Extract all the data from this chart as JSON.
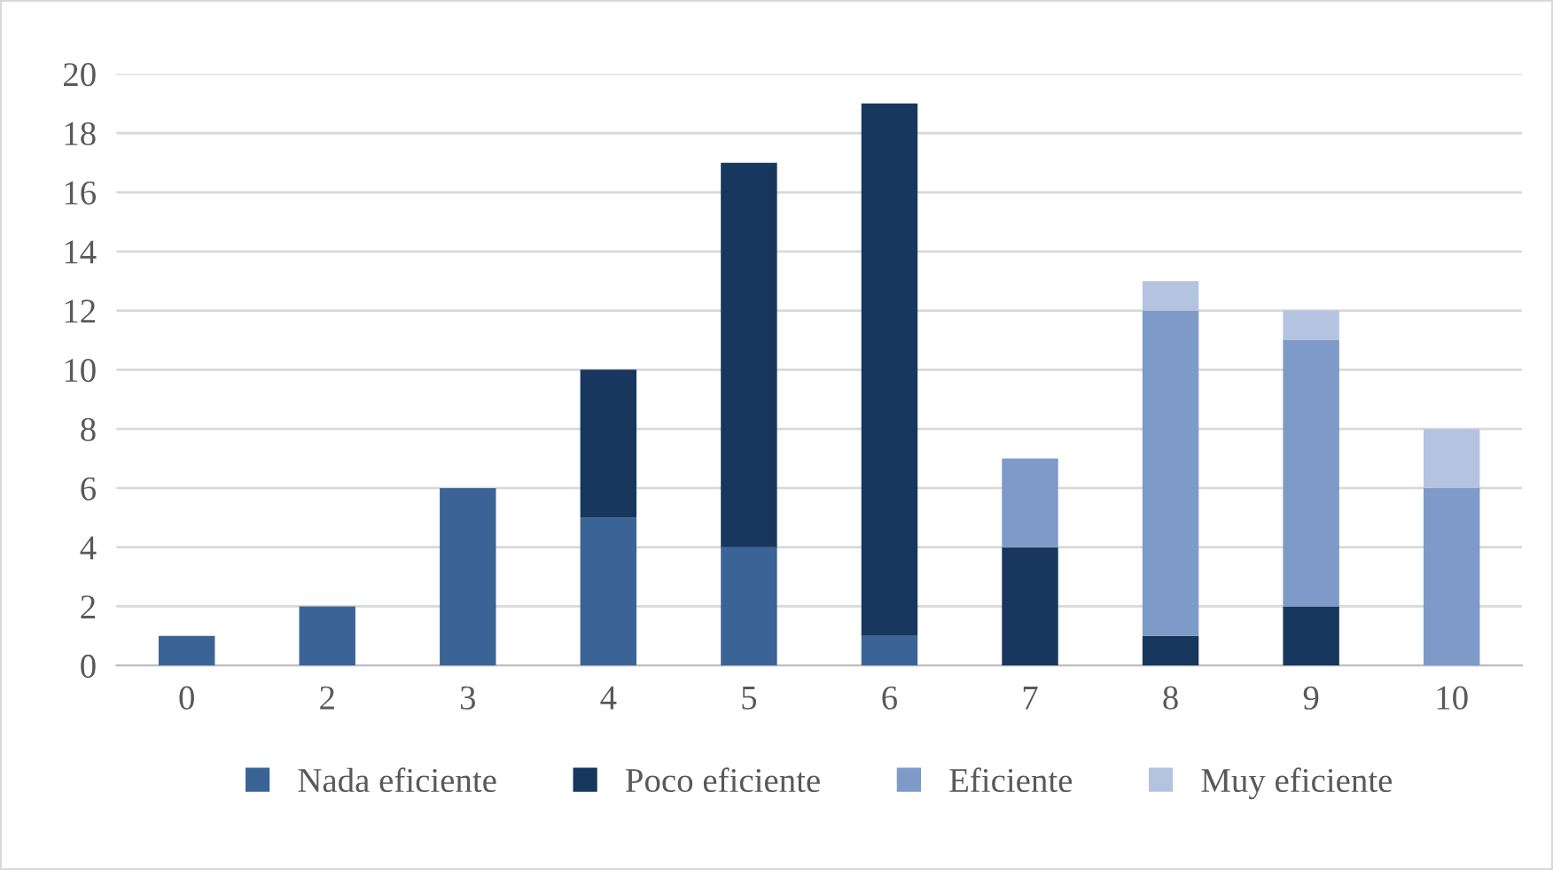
{
  "chart_data": {
    "type": "bar",
    "stacked": true,
    "categories": [
      "0",
      "2",
      "3",
      "4",
      "5",
      "6",
      "7",
      "8",
      "9",
      "10"
    ],
    "series": [
      {
        "name": "Nada eficiente",
        "color": "#3a6496",
        "values": [
          1,
          2,
          6,
          5,
          4,
          1,
          0,
          0,
          0,
          0
        ]
      },
      {
        "name": "Poco eficiente",
        "color": "#17375e",
        "values": [
          0,
          0,
          0,
          5,
          13,
          18,
          4,
          1,
          2,
          0
        ]
      },
      {
        "name": "Eficiente",
        "color": "#7d9ac8",
        "values": [
          0,
          0,
          0,
          0,
          0,
          0,
          3,
          11,
          9,
          6
        ]
      },
      {
        "name": "Muy eficiente",
        "color": "#b4c4e0",
        "values": [
          0,
          0,
          0,
          0,
          0,
          0,
          0,
          1,
          1,
          2
        ]
      }
    ],
    "ylim": [
      0,
      20
    ],
    "yticks": [
      0,
      2,
      4,
      6,
      8,
      10,
      12,
      14,
      16,
      18,
      20
    ],
    "grid": "y",
    "legend": "bottom"
  }
}
